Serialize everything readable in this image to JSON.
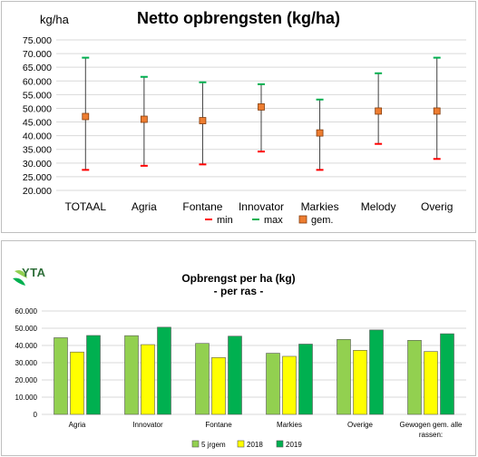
{
  "chart_data": [
    {
      "type": "errorbar",
      "title": "Netto opbrengsten (kg/ha)",
      "ylabel": "kg/ha",
      "ylim": [
        20000,
        75000
      ],
      "ytick_values": [
        20000,
        25000,
        30000,
        35000,
        40000,
        45000,
        50000,
        55000,
        60000,
        65000,
        70000,
        75000
      ],
      "ytick_labels": [
        "20.000",
        "25.000",
        "30.000",
        "35.000",
        "40.000",
        "45.000",
        "50.000",
        "55.000",
        "60.000",
        "65.000",
        "70.000",
        "75.000"
      ],
      "grid": true,
      "legend_position": "bottom",
      "categories": [
        "TOTAAL",
        "Agria",
        "Fontane",
        "Innovator",
        "Markies",
        "Melody",
        "Overig"
      ],
      "series": [
        {
          "name": "min",
          "color": "#ff0000",
          "values": [
            27500,
            29000,
            29500,
            34200,
            27500,
            37000,
            31500
          ]
        },
        {
          "name": "max",
          "color": "#00b050",
          "values": [
            68500,
            61500,
            59500,
            58800,
            53200,
            62800,
            68500
          ]
        },
        {
          "name": "gem.",
          "color": "#ed7d31",
          "values": [
            47000,
            46000,
            45500,
            50500,
            41000,
            49000,
            49000
          ]
        }
      ]
    },
    {
      "type": "bar",
      "title": "Opbrengst per ha (kg)",
      "subtitle": "- per ras -",
      "ylim": [
        0,
        60000
      ],
      "ytick_values": [
        0,
        10000,
        20000,
        30000,
        40000,
        50000,
        60000
      ],
      "ytick_labels": [
        "0",
        "10.000",
        "20.000",
        "30.000",
        "40.000",
        "50.000",
        "60.000"
      ],
      "grid": true,
      "legend_position": "bottom",
      "categories": [
        "Agria",
        "Innovator",
        "Fontane",
        "Markies",
        "Overige",
        "Gewogen gem. alle rassen:"
      ],
      "series": [
        {
          "name": "5 jrgem",
          "color": "#92d050",
          "values": [
            44500,
            45700,
            41200,
            35500,
            43500,
            43000
          ]
        },
        {
          "name": "2018",
          "color": "#ffff00",
          "values": [
            36200,
            40500,
            33000,
            33700,
            37200,
            36500
          ]
        },
        {
          "name": "2019",
          "color": "#00b050",
          "values": [
            45800,
            50600,
            45400,
            40800,
            49000,
            46800
          ]
        }
      ]
    }
  ],
  "logo": {
    "text": "YTA"
  }
}
